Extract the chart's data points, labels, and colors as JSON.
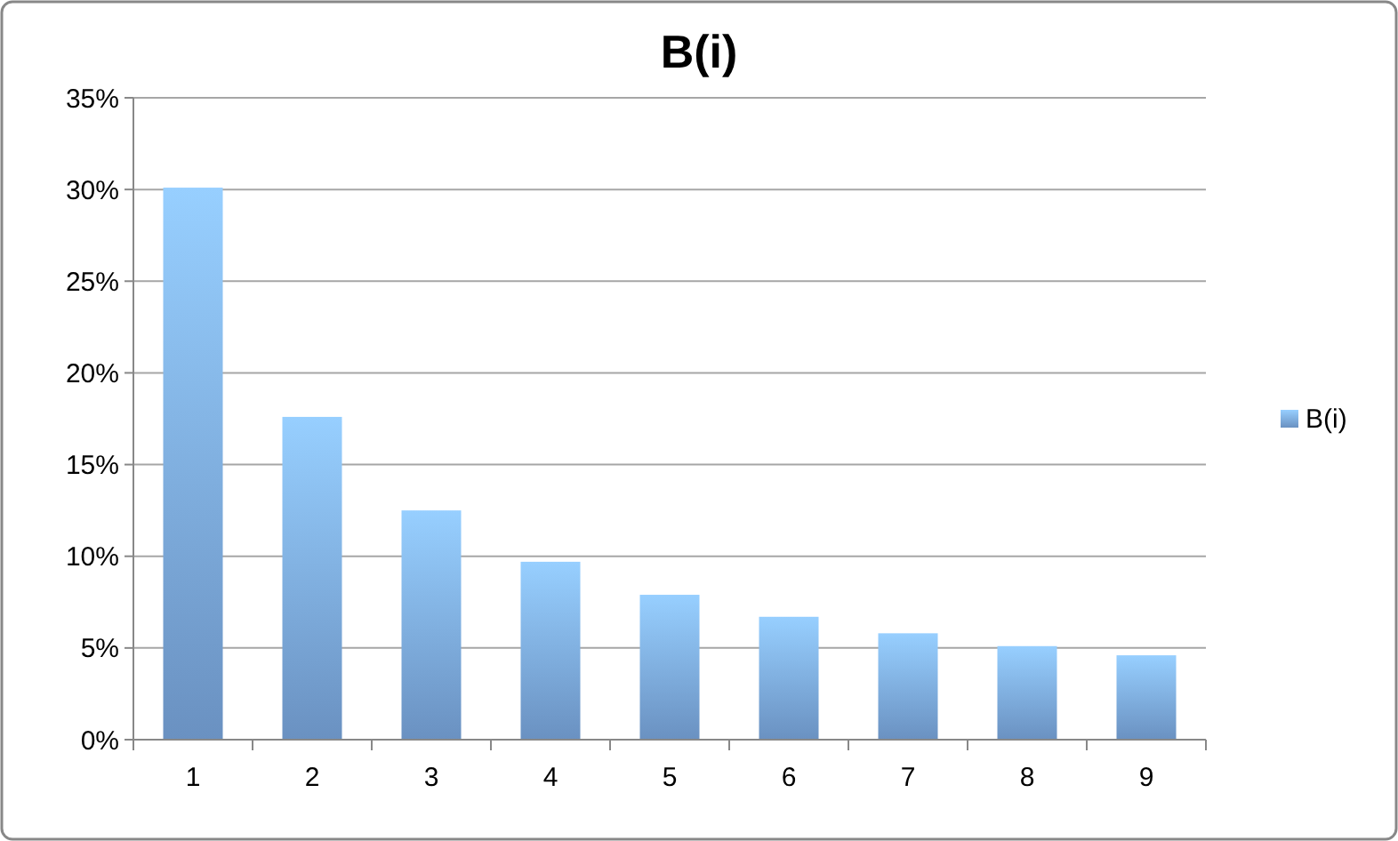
{
  "chart_data": {
    "type": "bar",
    "title": "B(i)",
    "categories": [
      "1",
      "2",
      "3",
      "4",
      "5",
      "6",
      "7",
      "8",
      "9"
    ],
    "series": [
      {
        "name": "B(i)",
        "color": "#7aa7df",
        "values": [
          30.1,
          17.6,
          12.5,
          9.7,
          7.9,
          6.7,
          5.8,
          5.1,
          4.6
        ]
      }
    ],
    "ylim": [
      0,
      35
    ],
    "yticks": [
      {
        "value": 0,
        "label": "0%"
      },
      {
        "value": 5,
        "label": "5%"
      },
      {
        "value": 10,
        "label": "10%"
      },
      {
        "value": 15,
        "label": "15%"
      },
      {
        "value": 20,
        "label": "20%"
      },
      {
        "value": 25,
        "label": "25%"
      },
      {
        "value": 30,
        "label": "30%"
      },
      {
        "value": 35,
        "label": "35%"
      }
    ],
    "grid": "y",
    "legend": "right"
  }
}
